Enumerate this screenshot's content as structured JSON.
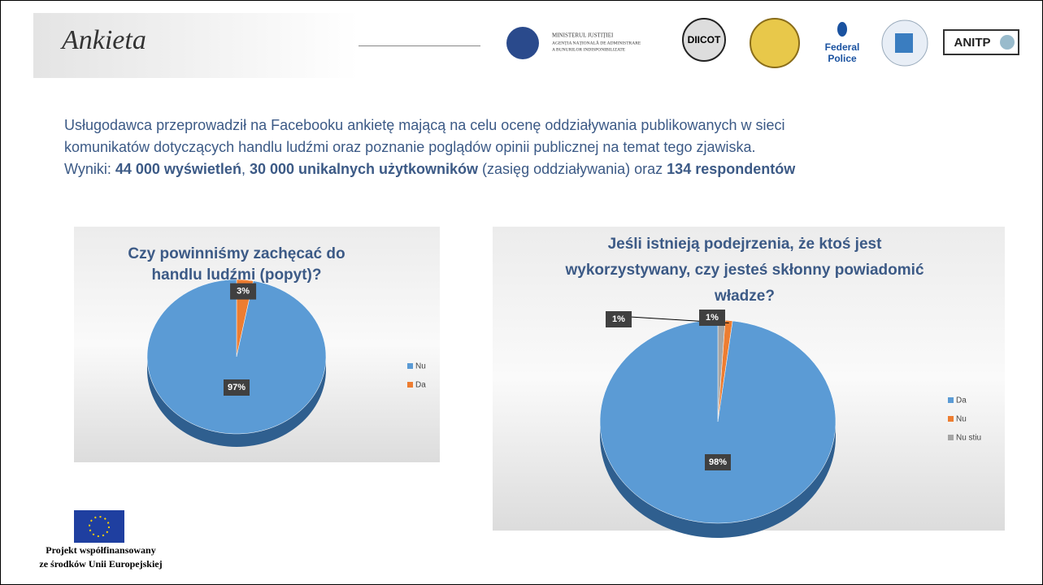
{
  "slide": {
    "title": "Ankieta",
    "logo_text": [
      "MINISTERUL JUSTIȚIEI",
      "AGENȚIA NAȚIONALĂ DE ADMINISTRARE",
      "A BUNURILOR INDISPONIBILIZATE",
      "DIICOT",
      "Federal",
      "Police",
      "ANITP"
    ],
    "intro": [
      [
        {
          "text": "Usługodawca przeprowadził na Facebooku ankietę mającą na celu ocenę oddziaływania publikowanych w sieci",
          "bold": false
        }
      ],
      [
        {
          "text": "komunikatów dotyczących handlu ludźmi oraz poznanie poglądów opinii publicznej na temat tego zjawiska.",
          "bold": false
        }
      ],
      [
        {
          "text": "Wyniki: ",
          "bold": false
        },
        {
          "text": "44 000 wyświetleń",
          "bold": true
        },
        {
          "text": ", ",
          "bold": false
        },
        {
          "text": "30 000 unikalnych użytkowników",
          "bold": true
        },
        {
          "text": " (zasięg oddziaływania) oraz ",
          "bold": false
        },
        {
          "text": "134 respondentów",
          "bold": true
        }
      ]
    ],
    "footer": [
      "Projekt współfinansowany",
      "ze środków Unii Europejskiej"
    ]
  },
  "chart_data": [
    {
      "type": "pie",
      "title": [
        "Czy powinniśmy zachęcać do",
        "handlu ludźmi (popyt)?"
      ],
      "categories": [
        "Nu",
        "Da"
      ],
      "values": [
        97,
        3
      ],
      "value_labels": [
        "97%",
        "3%"
      ],
      "colors": [
        "#5b9bd5",
        "#ed7d31"
      ],
      "legend": "right"
    },
    {
      "type": "pie",
      "title": [
        "Jeśli istnieją podejrzenia, że ktoś jest",
        "wykorzystywany, czy jesteś skłonny powiadomić",
        "władze?"
      ],
      "categories": [
        "Da",
        "Nu",
        "Nu stiu"
      ],
      "values": [
        98,
        1,
        1
      ],
      "value_labels": [
        "98%",
        "1%",
        "1%"
      ],
      "colors": [
        "#5b9bd5",
        "#ed7d31",
        "#a5a5a5"
      ],
      "legend": "right"
    }
  ]
}
